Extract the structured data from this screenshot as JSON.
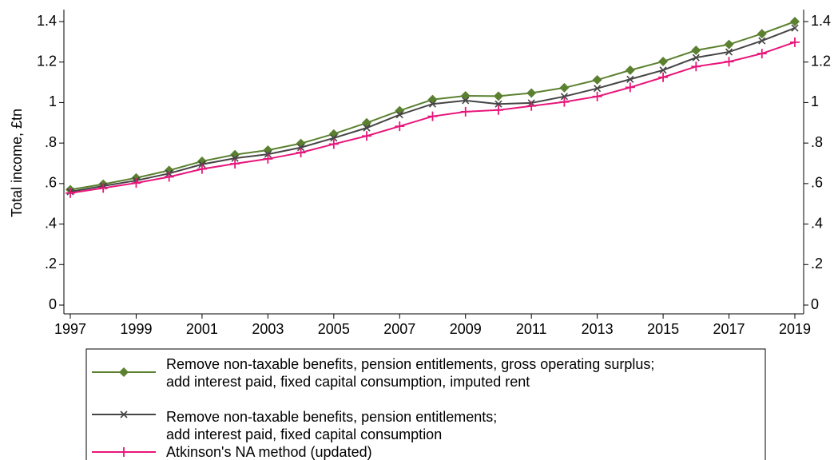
{
  "chart_data": {
    "type": "line",
    "y_label": "Total income, £tn",
    "x": [
      1997,
      1998,
      1999,
      2000,
      2001,
      2002,
      2003,
      2004,
      2005,
      2006,
      2007,
      2008,
      2009,
      2010,
      2011,
      2012,
      2013,
      2014,
      2015,
      2016,
      2017,
      2018,
      2019
    ],
    "xlim": [
      1997,
      2019
    ],
    "xticks": [
      1997,
      1999,
      2001,
      2003,
      2005,
      2007,
      2009,
      2011,
      2013,
      2015,
      2017,
      2019
    ],
    "ylim": [
      0,
      1.4
    ],
    "yticks": [
      0,
      {
        "value": 0.2,
        "label": ".2"
      },
      {
        "value": 0.4,
        "label": ".4"
      },
      {
        "value": 0.6,
        "label": ".6"
      },
      {
        "value": 0.8,
        "label": ".8"
      },
      1,
      {
        "value": 1.2,
        "label": "1.2"
      },
      1.4
    ],
    "series": [
      {
        "name": "Remove non-taxable benefits, pension entitlements, gross operating surplus;\nadd interest paid, fixed capital consumption, imputed rent",
        "color": "#5b8130",
        "marker": "diamond",
        "values": [
          0.57,
          0.597,
          0.628,
          0.665,
          0.71,
          0.743,
          0.765,
          0.798,
          0.845,
          0.9,
          0.96,
          1.015,
          1.033,
          1.032,
          1.047,
          1.073,
          1.112,
          1.16,
          1.203,
          1.258,
          1.287,
          1.34,
          1.4
        ]
      },
      {
        "name": "Remove non-taxable benefits, pension entitlements;\nadd interest paid, fixed capital consumption",
        "color": "#454545",
        "marker": "x",
        "values": [
          0.56,
          0.588,
          0.615,
          0.65,
          0.695,
          0.725,
          0.745,
          0.778,
          0.825,
          0.875,
          0.94,
          0.993,
          1.01,
          0.993,
          0.998,
          1.03,
          1.07,
          1.115,
          1.16,
          1.222,
          1.25,
          1.305,
          1.368
        ]
      },
      {
        "name": "Atkinson's NA method (updated)",
        "color": "#e8157a",
        "marker": "plus",
        "values": [
          0.553,
          0.578,
          0.603,
          0.633,
          0.672,
          0.698,
          0.722,
          0.753,
          0.795,
          0.835,
          0.883,
          0.932,
          0.955,
          0.963,
          0.983,
          1.003,
          1.03,
          1.075,
          1.125,
          1.178,
          1.202,
          1.242,
          1.298
        ]
      }
    ]
  }
}
